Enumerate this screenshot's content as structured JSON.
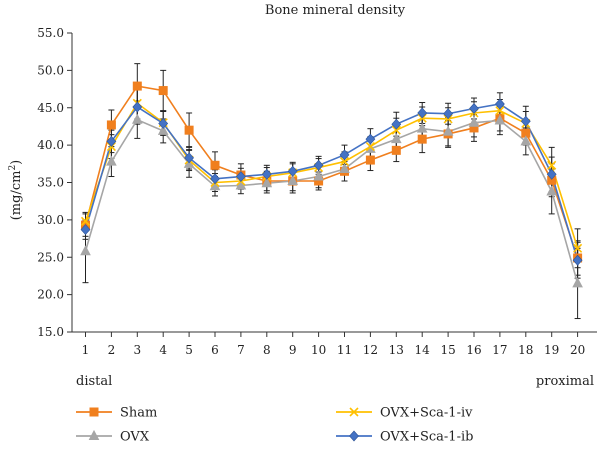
{
  "chart_data": {
    "type": "line",
    "title": "Bone mineral density",
    "ylabel": "(mg/cm",
    "ylabel_sup": "2",
    "ylabel_close": ")",
    "xlabel_left": "distal",
    "xlabel_right": "proximal",
    "ylim": [
      15.0,
      55.0
    ],
    "yticks": [
      "15.0",
      "20.0",
      "25.0",
      "30.0",
      "35.0",
      "40.0",
      "45.0",
      "50.0",
      "55.0"
    ],
    "categories": [
      "1",
      "2",
      "3",
      "4",
      "5",
      "6",
      "7",
      "8",
      "9",
      "10",
      "11",
      "12",
      "13",
      "14",
      "15",
      "16",
      "17",
      "18",
      "19",
      "20"
    ],
    "legend_placement": "bottom",
    "series": [
      {
        "name": "Sham",
        "color": "#F07F1E",
        "marker": "square",
        "values": [
          29.3,
          42.7,
          47.9,
          47.3,
          42.0,
          37.3,
          36.0,
          35.2,
          35.2,
          35.2,
          36.5,
          38.0,
          39.3,
          40.8,
          41.5,
          42.3,
          43.6,
          41.6,
          35.3,
          24.9
        ],
        "errors": [
          1.5,
          2.0,
          3.0,
          2.7,
          2.3,
          1.8,
          1.5,
          1.3,
          1.3,
          1.2,
          1.3,
          1.4,
          1.5,
          1.8,
          1.8,
          1.8,
          1.7,
          1.6,
          2.2,
          2.3
        ]
      },
      {
        "name": "OVX",
        "color": "#A6A6A6",
        "marker": "triangle",
        "values": [
          25.8,
          37.8,
          43.4,
          41.9,
          37.5,
          34.5,
          34.6,
          34.9,
          35.2,
          35.8,
          36.8,
          39.5,
          40.8,
          42.2,
          41.8,
          43.0,
          43.3,
          40.5,
          33.8,
          21.5
        ],
        "errors": [
          4.2,
          2.0,
          2.5,
          1.6,
          1.8,
          1.3,
          1.1,
          1.3,
          1.6,
          1.5,
          1.6,
          1.6,
          1.7,
          1.8,
          1.9,
          1.9,
          1.9,
          1.8,
          3.0,
          4.7
        ]
      },
      {
        "name": "OVX+Sca-1-iv",
        "color": "#FFC000",
        "marker": "x",
        "values": [
          29.8,
          39.8,
          45.6,
          43.0,
          38.0,
          35.0,
          35.2,
          35.8,
          36.3,
          37.0,
          37.8,
          39.8,
          42.0,
          43.6,
          43.5,
          44.3,
          44.6,
          42.9,
          37.3,
          26.2
        ],
        "errors": [
          1.2,
          1.6,
          2.1,
          1.6,
          1.4,
          1.2,
          1.1,
          1.2,
          1.2,
          1.2,
          1.3,
          1.3,
          1.6,
          1.5,
          1.5,
          1.5,
          1.5,
          1.6,
          2.4,
          2.6
        ]
      },
      {
        "name": "OVX+Sca-1-ib",
        "color": "#4472C4",
        "marker": "diamond",
        "values": [
          28.7,
          40.5,
          45.1,
          42.9,
          38.3,
          35.5,
          35.8,
          36.1,
          36.5,
          37.3,
          38.7,
          40.8,
          42.8,
          44.3,
          44.2,
          44.9,
          45.5,
          43.2,
          36.1,
          24.6
        ],
        "errors": [
          1.3,
          1.5,
          2.3,
          1.6,
          1.5,
          1.2,
          1.1,
          1.2,
          1.2,
          1.2,
          1.3,
          1.4,
          1.6,
          1.4,
          1.4,
          1.4,
          1.5,
          2.0,
          2.3,
          2.4
        ]
      }
    ]
  }
}
